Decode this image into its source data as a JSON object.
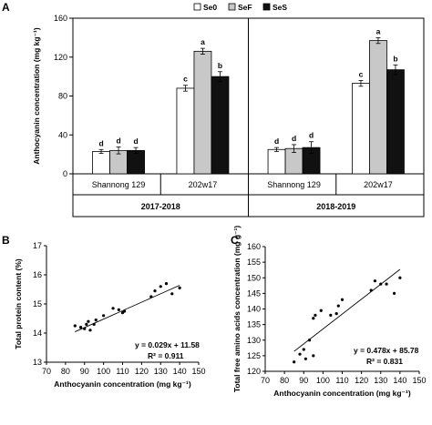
{
  "chart_data": [
    {
      "panel": "A",
      "type": "bar",
      "ylabel": "Anthocyanin concentration (mg  kg⁻¹)",
      "ylim": [
        0,
        160
      ],
      "yticks": [
        0,
        40,
        80,
        120,
        160
      ],
      "grid": false,
      "legend_position": "top",
      "series": [
        {
          "name": "Se0",
          "color": "#ffffff"
        },
        {
          "name": "SeF",
          "color": "#c8c8c8"
        },
        {
          "name": "SeS",
          "color": "#111111"
        }
      ],
      "years": [
        {
          "label": "2017-2018",
          "groups": [
            {
              "label": "Shannong 129",
              "bars": [
                {
                  "series": "Se0",
                  "value": 23,
                  "error": 2,
                  "sig": "d"
                },
                {
                  "series": "SeF",
                  "value": 24,
                  "error": 3.5,
                  "sig": "d"
                },
                {
                  "series": "SeS",
                  "value": 24,
                  "error": 3,
                  "sig": "d"
                }
              ]
            },
            {
              "label": "202w17",
              "bars": [
                {
                  "series": "Se0",
                  "value": 88,
                  "error": 3,
                  "sig": "c"
                },
                {
                  "series": "SeF",
                  "value": 126,
                  "error": 3,
                  "sig": "a"
                },
                {
                  "series": "SeS",
                  "value": 100,
                  "error": 5,
                  "sig": "b"
                }
              ]
            }
          ]
        },
        {
          "label": "2018-2019",
          "groups": [
            {
              "label": "Shannong 129",
              "bars": [
                {
                  "series": "Se0",
                  "value": 25,
                  "error": 2,
                  "sig": "d"
                },
                {
                  "series": "SeF",
                  "value": 26,
                  "error": 4,
                  "sig": "d"
                },
                {
                  "series": "SeS",
                  "value": 27,
                  "error": 6,
                  "sig": "d"
                }
              ]
            },
            {
              "label": "202w17",
              "bars": [
                {
                  "series": "Se0",
                  "value": 93,
                  "error": 3,
                  "sig": "c"
                },
                {
                  "series": "SeF",
                  "value": 137,
                  "error": 3,
                  "sig": "a"
                },
                {
                  "series": "SeS",
                  "value": 107,
                  "error": 5,
                  "sig": "b"
                }
              ]
            }
          ]
        }
      ]
    },
    {
      "panel": "B",
      "type": "scatter",
      "xlabel": "Anthocyanin concentration (mg  kg⁻¹)",
      "ylabel": "Total protein content (%)",
      "xlim": [
        70,
        150
      ],
      "ylim": [
        13,
        17
      ],
      "xticks": [
        70,
        80,
        90,
        100,
        110,
        120,
        130,
        140,
        150
      ],
      "yticks": [
        13,
        14,
        15,
        16,
        17
      ],
      "grid": false,
      "points": [
        [
          85,
          14.25
        ],
        [
          88,
          14.2
        ],
        [
          90,
          14.15
        ],
        [
          91,
          14.3
        ],
        [
          92,
          14.4
        ],
        [
          93,
          14.1
        ],
        [
          95,
          14.3
        ],
        [
          96,
          14.45
        ],
        [
          100,
          14.6
        ],
        [
          105,
          14.85
        ],
        [
          108,
          14.8
        ],
        [
          110,
          14.7
        ],
        [
          111,
          14.75
        ],
        [
          125,
          15.25
        ],
        [
          127,
          15.45
        ],
        [
          130,
          15.6
        ],
        [
          133,
          15.7
        ],
        [
          136,
          15.35
        ],
        [
          140,
          15.55
        ]
      ],
      "fit": {
        "slope": 0.029,
        "intercept": 11.58
      },
      "equation": "y = 0.029x + 11.58",
      "r2": "R² = 0.911"
    },
    {
      "panel": "C",
      "type": "scatter",
      "xlabel": "Anthocyanin concentration (mg  kg⁻¹)",
      "ylabel": "Total free amino acids concentration (mg  g⁻¹)",
      "xlim": [
        70,
        150
      ],
      "ylim": [
        120,
        160
      ],
      "xticks": [
        70,
        80,
        90,
        100,
        110,
        120,
        130,
        140,
        150
      ],
      "yticks": [
        120,
        125,
        130,
        135,
        140,
        145,
        150,
        155,
        160
      ],
      "grid": false,
      "points": [
        [
          85,
          123
        ],
        [
          88,
          125.5
        ],
        [
          90,
          127
        ],
        [
          91,
          124
        ],
        [
          93,
          130
        ],
        [
          95,
          137
        ],
        [
          95,
          125
        ],
        [
          96,
          138
        ],
        [
          99,
          139.5
        ],
        [
          104,
          138
        ],
        [
          107,
          138.5
        ],
        [
          108,
          141
        ],
        [
          110,
          143
        ],
        [
          125,
          146
        ],
        [
          127,
          149
        ],
        [
          130,
          148
        ],
        [
          133,
          148
        ],
        [
          137,
          145
        ],
        [
          140,
          150
        ]
      ],
      "fit": {
        "slope": 0.478,
        "intercept": 85.78
      },
      "equation": "y = 0.478x + 85.78",
      "r2": "R² = 0.831"
    }
  ]
}
